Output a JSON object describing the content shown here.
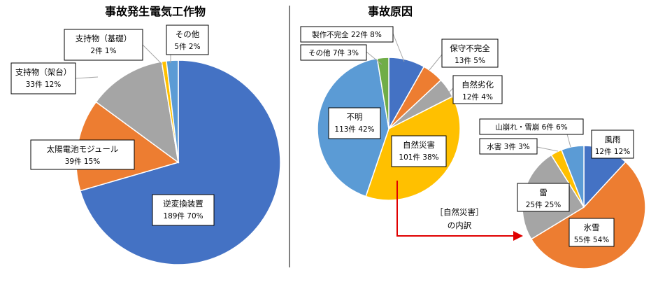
{
  "chart_data": [
    {
      "type": "pie",
      "title": "事故発生電気工作物",
      "slices": [
        {
          "label": "逆変換装置",
          "value_text": "189件 70%",
          "count": 189,
          "percent": 70,
          "color": "#4472C4"
        },
        {
          "label": "太陽電池モジュール",
          "value_text": "39件 15%",
          "count": 39,
          "percent": 15,
          "color": "#ED7D31"
        },
        {
          "label": "支持物（架台）",
          "value_text": "33件 12%",
          "count": 33,
          "percent": 12,
          "color": "#A5A5A5"
        },
        {
          "label": "支持物（基礎）",
          "value_text": "2件 1%",
          "count": 2,
          "percent": 1,
          "color": "#FFC000"
        },
        {
          "label": "その他",
          "value_text": "5件 2%",
          "count": 5,
          "percent": 2,
          "color": "#5B9BD5"
        }
      ]
    },
    {
      "type": "pie",
      "title": "事故原因",
      "slices": [
        {
          "label": "保守不完全",
          "value_text": "13件 5%",
          "count": 13,
          "percent": 5,
          "color": "#ED7D31"
        },
        {
          "label": "自然劣化",
          "value_text": "12件 4%",
          "count": 12,
          "percent": 4,
          "color": "#A5A5A5"
        },
        {
          "label": "自然災害",
          "value_text": "101件 38%",
          "count": 101,
          "percent": 38,
          "color": "#FFC000"
        },
        {
          "label": "不明",
          "value_text": "113件 42%",
          "count": 113,
          "percent": 42,
          "color": "#5B9BD5"
        },
        {
          "label": "その他",
          "value_text": "7件 3%",
          "count": 7,
          "percent": 3,
          "color": "#70AD47"
        },
        {
          "label": "製作不完全",
          "value_text": "22件 8%",
          "count": 22,
          "percent": 8,
          "color": "#4472C4"
        }
      ]
    },
    {
      "type": "pie",
      "title": "",
      "slices": [
        {
          "label": "風雨",
          "value_text": "12件 12%",
          "count": 12,
          "percent": 12,
          "color": "#4472C4"
        },
        {
          "label": "水害",
          "value_text": "3件 3%",
          "count": 3,
          "percent": 3,
          "color": "#FFC000"
        },
        {
          "label": "山崩れ・雪崩",
          "value_text": "6件 6%",
          "count": 6,
          "percent": 6,
          "color": "#5B9BD5"
        },
        {
          "label": "雷",
          "value_text": "25件 25%",
          "count": 25,
          "percent": 25,
          "color": "#A5A5A5"
        },
        {
          "label": "氷雪",
          "value_text": "55件 54%",
          "count": 55,
          "percent": 54,
          "color": "#ED7D31"
        }
      ]
    }
  ],
  "annotation": {
    "line1": "［自然災害］",
    "line2": "の内訳",
    "arrow_color": "#E00000"
  }
}
